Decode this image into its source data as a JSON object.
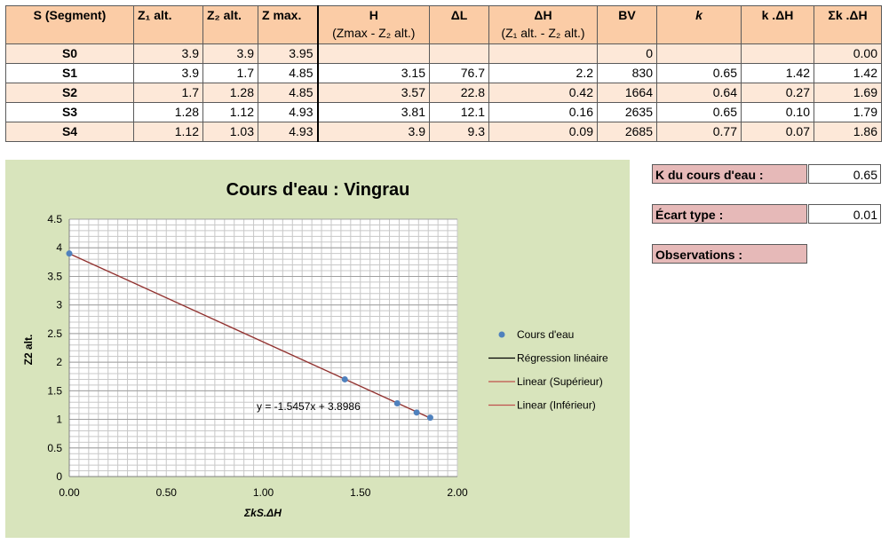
{
  "table": {
    "headers": [
      {
        "main": "S (Segment)",
        "sub": ""
      },
      {
        "main": "Z₁ alt.",
        "sub": ""
      },
      {
        "main": "Z₂ alt.",
        "sub": ""
      },
      {
        "main": "Z max.",
        "sub": ""
      },
      {
        "main": "H",
        "sub": "(Zmax - Z₂ alt.)"
      },
      {
        "main": "ΔL",
        "sub": ""
      },
      {
        "main": "ΔH",
        "sub": "(Z₁ alt. - Z₂ alt.)"
      },
      {
        "main": "BV",
        "sub": ""
      },
      {
        "main": "k",
        "sub": ""
      },
      {
        "main": "k .ΔH",
        "sub": ""
      },
      {
        "main": "Σk .ΔH",
        "sub": ""
      }
    ],
    "rows": [
      [
        "S0",
        "3.9",
        "3.9",
        "3.95",
        "",
        "",
        "",
        "0",
        "",
        "",
        "0.00"
      ],
      [
        "S1",
        "3.9",
        "1.7",
        "4.85",
        "3.15",
        "76.7",
        "2.2",
        "830",
        "0.65",
        "1.42",
        "1.42"
      ],
      [
        "S2",
        "1.7",
        "1.28",
        "4.85",
        "3.57",
        "22.8",
        "0.42",
        "1664",
        "0.64",
        "0.27",
        "1.69"
      ],
      [
        "S3",
        "1.28",
        "1.12",
        "4.93",
        "3.81",
        "12.1",
        "0.16",
        "2635",
        "0.65",
        "0.10",
        "1.79"
      ],
      [
        "S4",
        "1.12",
        "1.03",
        "4.93",
        "3.9",
        "9.3",
        "0.09",
        "2685",
        "0.77",
        "0.07",
        "1.86"
      ]
    ]
  },
  "side": {
    "k_label": "K du cours d'eau :",
    "k_value": "0.65",
    "std_label": "Écart type :",
    "std_value": "0.01",
    "obs_label": "Observations :"
  },
  "chart_data": {
    "type": "scatter",
    "title": "Cours d'eau : Vingrau",
    "xlabel": "ΣkS.ΔH",
    "ylabel": "Z2 alt.",
    "xlim": [
      0,
      2
    ],
    "ylim": [
      0,
      4.5
    ],
    "xticks": [
      "0.00",
      "0.50",
      "1.00",
      "1.50",
      "2.00"
    ],
    "yticks": [
      "0",
      "0.5",
      "1",
      "1.5",
      "2",
      "2.5",
      "3",
      "3.5",
      "4",
      "4.5"
    ],
    "series": [
      {
        "name": "Cours d'eau",
        "x": [
          0.0,
          1.42,
          1.69,
          1.79,
          1.86
        ],
        "y": [
          3.9,
          1.7,
          1.28,
          1.12,
          1.03
        ]
      }
    ],
    "trendline": {
      "slope": -1.5457,
      "intercept": 3.8986,
      "equation": "y = -1.5457x + 3.8986"
    },
    "legend": [
      "Cours d'eau",
      "Régression linéaire",
      "Linear (Supérieur)",
      "Linear (Inférieur)"
    ],
    "legend_position": "right",
    "grid": true,
    "colors": {
      "points": "#4f81bd",
      "regression": "#000000",
      "linear": "#c0504d",
      "background": "#d8e4bc"
    }
  }
}
